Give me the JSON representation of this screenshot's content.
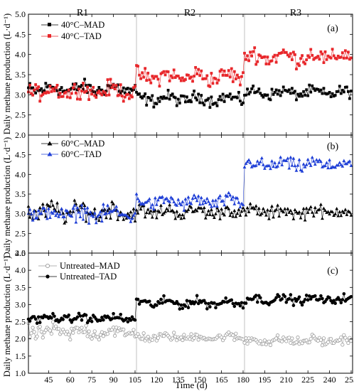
{
  "chart_data": {
    "type": "line",
    "phase_labels": [
      "R1",
      "R2",
      "R3"
    ],
    "phase_boundaries": [
      106,
      181
    ],
    "x_range": [
      31,
      256
    ],
    "x_ticks": [
      45,
      60,
      75,
      90,
      105,
      120,
      135,
      150,
      165,
      180,
      195,
      210,
      225,
      240,
      255
    ],
    "xlabel": "Time (d)",
    "panels": [
      {
        "id": "a",
        "panel_label": "(a)",
        "ylabel": "Daily methane production (L·d⁻¹)",
        "ylim": [
          2.0,
          5.0
        ],
        "yticks": [
          "2.0",
          "2.5",
          "3.0",
          "3.5",
          "4.0",
          "4.5",
          "5.0"
        ],
        "series": [
          {
            "name": "40°C–MAD",
            "color": "#000000",
            "marker": "square",
            "segments": [
              {
                "x0": 31,
                "x1": 106,
                "base": 3.15,
                "amp": 0.25
              },
              {
                "x0": 106,
                "x1": 181,
                "base": 2.9,
                "amp": 0.22
              },
              {
                "x0": 181,
                "x1": 256,
                "base": 3.05,
                "amp": 0.2
              }
            ]
          },
          {
            "name": "40°C–TAD",
            "color": "#e8272b",
            "marker": "square",
            "segments": [
              {
                "x0": 31,
                "x1": 106,
                "base": 3.1,
                "amp": 0.3
              },
              {
                "x0": 106,
                "x1": 181,
                "base": 3.45,
                "amp": 0.3
              },
              {
                "x0": 181,
                "x1": 256,
                "base": 3.95,
                "amp": 0.3
              }
            ]
          }
        ]
      },
      {
        "id": "b",
        "panel_label": "(b)",
        "ylabel": "Daily methane production (L·d⁻¹)",
        "ylim": [
          2.0,
          5.0
        ],
        "yticks": [
          "2.0",
          "2.5",
          "3.0",
          "3.5",
          "4.0",
          "4.5",
          "5.0"
        ],
        "series": [
          {
            "name": "60°C–MAD",
            "color": "#000000",
            "marker": "triangle",
            "segments": [
              {
                "x0": 31,
                "x1": 106,
                "base": 3.05,
                "amp": 0.35
              },
              {
                "x0": 106,
                "x1": 181,
                "base": 3.05,
                "amp": 0.25
              },
              {
                "x0": 181,
                "x1": 256,
                "base": 3.05,
                "amp": 0.25
              }
            ]
          },
          {
            "name": "60°C–TAD",
            "color": "#1f3fd6",
            "marker": "triangle",
            "segments": [
              {
                "x0": 31,
                "x1": 106,
                "base": 3.0,
                "amp": 0.3
              },
              {
                "x0": 106,
                "x1": 181,
                "base": 3.3,
                "amp": 0.25
              },
              {
                "x0": 181,
                "x1": 256,
                "base": 4.25,
                "amp": 0.25
              }
            ]
          }
        ]
      },
      {
        "id": "c",
        "panel_label": "(c)",
        "ylabel": "Daily methane production (L·d⁻¹)",
        "ylim": [
          1.0,
          4.5
        ],
        "yticks": [
          "1.0",
          "1.5",
          "2.0",
          "2.5",
          "3.0",
          "3.5",
          "4.0",
          "4.5"
        ],
        "series": [
          {
            "name": "Untreated–MAD",
            "color": "#9a9a9a",
            "marker": "open-circle",
            "segments": [
              {
                "x0": 31,
                "x1": 106,
                "base": 2.2,
                "amp": 0.3
              },
              {
                "x0": 106,
                "x1": 181,
                "base": 2.05,
                "amp": 0.18
              },
              {
                "x0": 181,
                "x1": 256,
                "base": 1.95,
                "amp": 0.2
              }
            ]
          },
          {
            "name": "Untreated–TAD",
            "color": "#000000",
            "marker": "circle",
            "segments": [
              {
                "x0": 31,
                "x1": 106,
                "base": 2.6,
                "amp": 0.18
              },
              {
                "x0": 106,
                "x1": 181,
                "base": 3.05,
                "amp": 0.2
              },
              {
                "x0": 181,
                "x1": 256,
                "base": 3.15,
                "amp": 0.18
              }
            ]
          }
        ]
      }
    ]
  }
}
